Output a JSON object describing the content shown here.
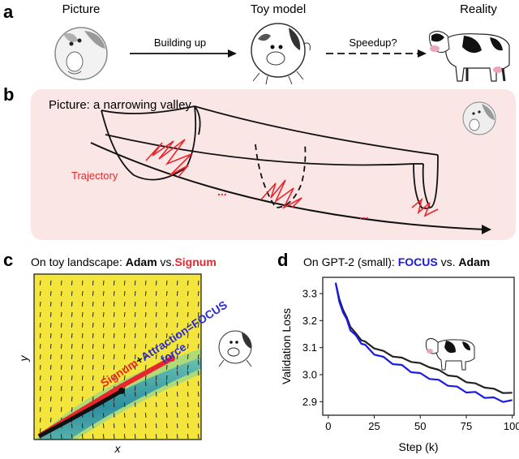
{
  "panel_a": {
    "letter": "a",
    "picture_label": "Picture",
    "toy_label": "Toy model",
    "reality_label": "Reality",
    "arrow1_label": "Building up",
    "arrow2_label": "Speedup?"
  },
  "panel_b": {
    "letter": "b",
    "title": "Picture: a narrowing valley",
    "trajectory_label": "Trajectory",
    "dots": "..."
  },
  "panel_c": {
    "letter": "c",
    "title_prefix": "On toy landscape: ",
    "title_adam": "Adam",
    "title_vs": " vs.",
    "title_signum": "Signum",
    "xlabel": "x",
    "ylabel": "y",
    "ann_signum": "Signum",
    "ann_plus": "+",
    "ann_attraction": "Attraction=FOCUS",
    "ann_force": "force",
    "colors": {
      "signum": "#e8262b",
      "focus": "#2a2ad6",
      "adam": "#111111",
      "valley": "#2e9a9b",
      "background": "#f4e53c"
    }
  },
  "panel_d": {
    "letter": "d",
    "title_prefix": "On GPT-2 (small): ",
    "title_focus": "FOCUS",
    "title_vs": " vs. ",
    "title_adam": "Adam",
    "colors": {
      "focus": "#1a1ae6",
      "adam": "#222222"
    }
  },
  "chart_data": {
    "type": "line",
    "title": "On GPT-2 (small): FOCUS vs. Adam",
    "xlabel": "Step (k)",
    "ylabel": "Validation Loss",
    "xlim": [
      -3,
      101
    ],
    "ylim": [
      2.85,
      3.36
    ],
    "xticks": [
      0,
      25,
      50,
      75,
      100
    ],
    "yticks": [
      2.9,
      3.0,
      3.1,
      3.2,
      3.3
    ],
    "grid": false,
    "series": [
      {
        "name": "FOCUS",
        "color": "#1a1ae6",
        "x": [
          4,
          6,
          8,
          10,
          12,
          15,
          18,
          20,
          25,
          30,
          35,
          40,
          45,
          50,
          55,
          60,
          65,
          70,
          75,
          80,
          85,
          90,
          95,
          100
        ],
        "y": [
          3.34,
          3.27,
          3.23,
          3.2,
          3.17,
          3.14,
          3.12,
          3.105,
          3.08,
          3.06,
          3.045,
          3.03,
          3.015,
          3.0,
          2.99,
          2.975,
          2.965,
          2.95,
          2.94,
          2.93,
          2.92,
          2.91,
          2.905,
          2.9
        ]
      },
      {
        "name": "Adam",
        "color": "#222222",
        "x": [
          4,
          6,
          8,
          10,
          12,
          15,
          18,
          20,
          25,
          30,
          35,
          40,
          45,
          50,
          55,
          60,
          65,
          70,
          75,
          80,
          85,
          90,
          95,
          100
        ],
        "y": [
          3.34,
          3.28,
          3.24,
          3.21,
          3.18,
          3.15,
          3.13,
          3.12,
          3.1,
          3.085,
          3.07,
          3.06,
          3.05,
          3.04,
          3.03,
          3.015,
          3.0,
          2.99,
          2.975,
          2.965,
          2.955,
          2.945,
          2.935,
          2.93
        ]
      }
    ]
  }
}
